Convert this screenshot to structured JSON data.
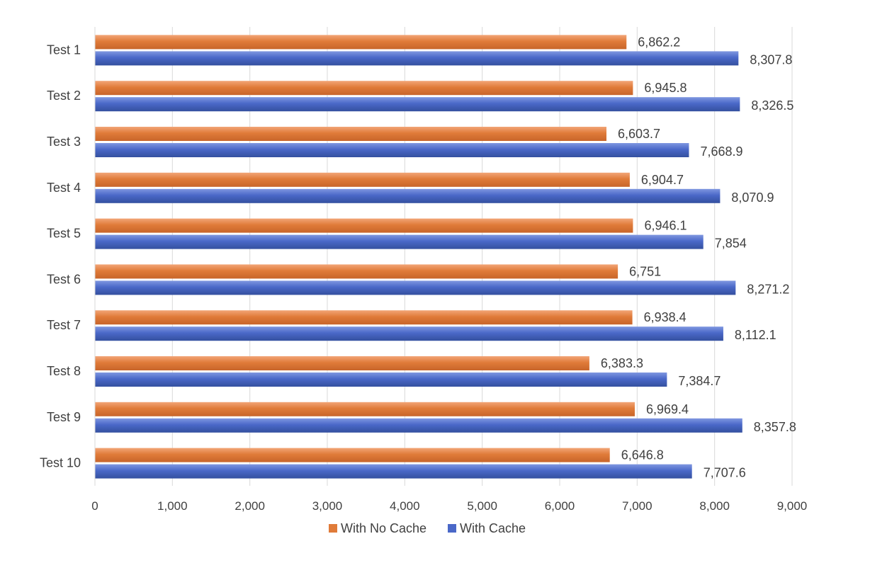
{
  "chart_data": {
    "type": "bar",
    "orientation": "horizontal",
    "categories": [
      "Test 1",
      "Test 2",
      "Test 3",
      "Test 4",
      "Test 5",
      "Test 6",
      "Test 7",
      "Test 8",
      "Test 9",
      "Test 10"
    ],
    "series": [
      {
        "name": "With No Cache",
        "color": "#E07B39",
        "values": [
          6862.2,
          6945.8,
          6603.7,
          6904.7,
          6946.1,
          6751,
          6938.4,
          6383.3,
          6969.4,
          6646.8
        ],
        "labels": [
          "6,862.2",
          "6,945.8",
          "6,603.7",
          "6,904.7",
          "6,946.1",
          "6,751",
          "6,938.4",
          "6,383.3",
          "6,969.4",
          "6,646.8"
        ]
      },
      {
        "name": "With Cache",
        "color": "#4A68C8",
        "values": [
          8307.8,
          8326.5,
          7668.9,
          8070.9,
          7854,
          8271.2,
          8112.1,
          7384.7,
          8357.8,
          7707.6
        ],
        "labels": [
          "8,307.8",
          "8,326.5",
          "7,668.9",
          "8,070.9",
          "7,854",
          "8,271.2",
          "8,112.1",
          "7,384.7",
          "8,357.8",
          "7,707.6"
        ]
      }
    ],
    "xlim": [
      0,
      9000
    ],
    "x_ticks": [
      0,
      1000,
      2000,
      3000,
      4000,
      5000,
      6000,
      7000,
      8000,
      9000
    ],
    "x_tick_labels": [
      "0",
      "1,000",
      "2,000",
      "3,000",
      "4,000",
      "5,000",
      "6,000",
      "7,000",
      "8,000",
      "9,000"
    ],
    "grid": "vertical",
    "legend_position": "bottom",
    "title": "",
    "xlabel": "",
    "ylabel": ""
  }
}
